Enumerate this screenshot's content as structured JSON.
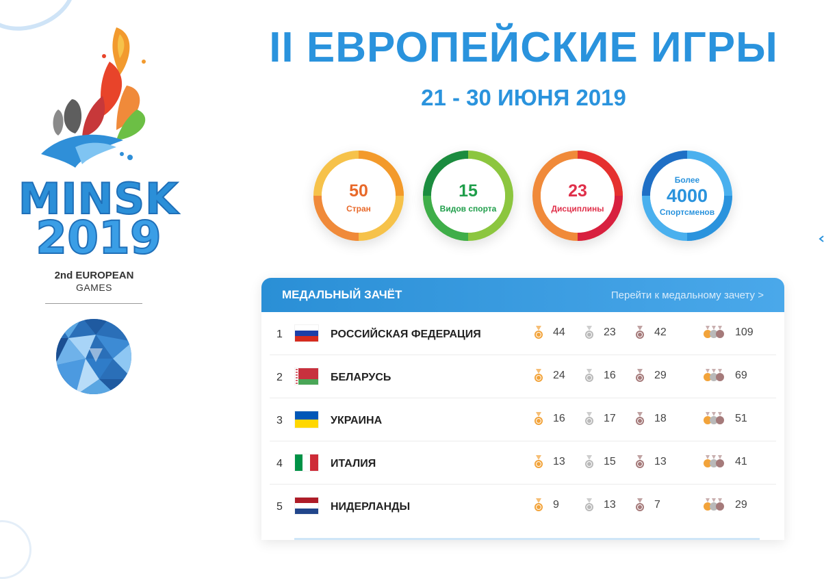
{
  "header": {
    "title": "II ЕВРОПЕЙСКИЕ ИГРЫ",
    "dates": "21 - 30 ИЮНЯ 2019"
  },
  "logo": {
    "line1": "MINSK",
    "line2": "2019",
    "sub1": "2nd EUROPEAN",
    "sub2": "GAMES"
  },
  "stats": [
    {
      "value": "50",
      "label": "Стран",
      "color": "#e8692a",
      "ring": [
        "#f39a2b",
        "#f6c24a"
      ]
    },
    {
      "value": "15",
      "label": "Видов спорта",
      "color": "#1f9e4a",
      "ring": [
        "#1b8c3f",
        "#8cc63f"
      ]
    },
    {
      "value": "23",
      "label": "Дисциплины",
      "color": "#e0304a",
      "ring": [
        "#e5312f",
        "#f08a3a"
      ]
    },
    {
      "prefix": "Более",
      "value": "4000",
      "label": "Спортсменов",
      "color": "#2a93dd",
      "ring": [
        "#1f6fc5",
        "#4ab0ee"
      ]
    }
  ],
  "medals": {
    "title": "МЕДАЛЬНЫЙ ЗАЧЁТ",
    "link": "Перейти к медальному зачету >",
    "colors": {
      "gold": "#f2a33a",
      "silver": "#b9b9b9",
      "bronze": "#a57a7a"
    },
    "rows": [
      {
        "rank": "1",
        "country": "РОССИЙСКАЯ ФЕДЕРАЦИЯ",
        "flag": [
          "#ffffff",
          "#1c3fa8",
          "#d52b1e"
        ],
        "gold": "44",
        "silver": "23",
        "bronze": "42",
        "total": "109"
      },
      {
        "rank": "2",
        "country": "БЕЛАРУСЬ",
        "flag": [
          "#c8313e",
          "#4aa657"
        ],
        "gold": "24",
        "silver": "16",
        "bronze": "29",
        "total": "69"
      },
      {
        "rank": "3",
        "country": "УКРАИНА",
        "flag": [
          "#0057b7",
          "#ffd700"
        ],
        "gold": "16",
        "silver": "17",
        "bronze": "18",
        "total": "51"
      },
      {
        "rank": "4",
        "country": "ИТАЛИЯ",
        "flag": [
          "#009246",
          "#ffffff",
          "#ce2b37"
        ],
        "gold": "13",
        "silver": "15",
        "bronze": "13",
        "total": "41"
      },
      {
        "rank": "5",
        "country": "НИДЕРЛАНДЫ",
        "flag": [
          "#ae1c28",
          "#ffffff",
          "#21468b"
        ],
        "gold": "9",
        "silver": "13",
        "bronze": "7",
        "total": "29"
      }
    ]
  }
}
